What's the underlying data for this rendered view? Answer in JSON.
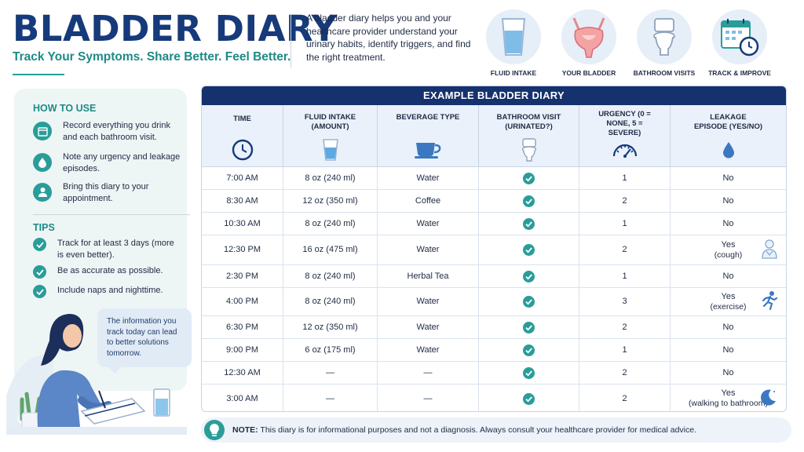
{
  "header": {
    "title": "BLADDER DIARY",
    "subtitle": "Track Your Symptoms. Share Better. Feel Better.",
    "intro": "A bladder diary helps you and your healthcare provider understand your urinary habits, identify triggers, and find the right treatment."
  },
  "top_icons": [
    {
      "label": "FLUID INTAKE",
      "icon": "water-glass-icon"
    },
    {
      "label": "YOUR BLADDER",
      "icon": "bladder-icon"
    },
    {
      "label": "BATHROOM VISITS",
      "icon": "toilet-icon"
    },
    {
      "label": "TRACK & IMPROVE",
      "icon": "calendar-clock-icon"
    }
  ],
  "sidebar": {
    "how_to_use_heading": "HOW TO USE",
    "how_to_use": [
      {
        "text": "Record everything you drink and each bathroom visit.",
        "icon": "calendar-icon"
      },
      {
        "text": "Note any urgency and leakage episodes.",
        "icon": "drop-icon"
      },
      {
        "text": "Bring this diary to your appointment.",
        "icon": "doctor-icon"
      }
    ],
    "tips_heading": "TIPS",
    "tips": [
      "Track for at least 3 days (more is even better).",
      "Be as accurate as possible.",
      "Include naps and nighttime."
    ],
    "bubble": "The information you track today can lead to better solutions tomorrow."
  },
  "table": {
    "title": "EXAMPLE BLADDER DIARY",
    "headers": [
      {
        "label": "TIME",
        "icon": "clock-icon"
      },
      {
        "label": "FLUID INTAKE (AMOUNT)",
        "icon": "glass-icon"
      },
      {
        "label": "BEVERAGE TYPE",
        "icon": "cup-icon"
      },
      {
        "label": "BATHROOM VISIT (URINATED?)",
        "icon": "toilet-icon"
      },
      {
        "label": "URGENCY (0 = NONE, 5 = SEVERE)",
        "icon": "gauge-icon"
      },
      {
        "label": "LEAKAGE EPISODE (YES/NO)",
        "icon": "drop-icon"
      }
    ],
    "rows": [
      {
        "time": "7:00 AM",
        "amount": "8 oz (240 ml)",
        "beverage": "Water",
        "visit": true,
        "urgency": "1",
        "leakage": "No",
        "note": "",
        "icon": ""
      },
      {
        "time": "8:30 AM",
        "amount": "12 oz (350 ml)",
        "beverage": "Coffee",
        "visit": true,
        "urgency": "2",
        "leakage": "No",
        "note": "",
        "icon": ""
      },
      {
        "time": "10:30 AM",
        "amount": "8 oz (240 ml)",
        "beverage": "Water",
        "visit": true,
        "urgency": "1",
        "leakage": "No",
        "note": "",
        "icon": ""
      },
      {
        "time": "12:30 PM",
        "amount": "16 oz (475 ml)",
        "beverage": "Water",
        "visit": true,
        "urgency": "2",
        "leakage": "Yes",
        "note": "(cough)",
        "icon": "cough-icon"
      },
      {
        "time": "2:30 PM",
        "amount": "8 oz (240 ml)",
        "beverage": "Herbal Tea",
        "visit": true,
        "urgency": "1",
        "leakage": "No",
        "note": "",
        "icon": ""
      },
      {
        "time": "4:00 PM",
        "amount": "8 oz (240 ml)",
        "beverage": "Water",
        "visit": true,
        "urgency": "3",
        "leakage": "Yes",
        "note": "(exercise)",
        "icon": "runner-icon"
      },
      {
        "time": "6:30 PM",
        "amount": "12 oz (350 ml)",
        "beverage": "Water",
        "visit": true,
        "urgency": "2",
        "leakage": "No",
        "note": "",
        "icon": ""
      },
      {
        "time": "9:00 PM",
        "amount": "6 oz (175 ml)",
        "beverage": "Water",
        "visit": true,
        "urgency": "1",
        "leakage": "No",
        "note": "",
        "icon": ""
      },
      {
        "time": "12:30 AM",
        "amount": "—",
        "beverage": "—",
        "visit": true,
        "urgency": "2",
        "leakage": "No",
        "note": "",
        "icon": ""
      },
      {
        "time": "3:00 AM",
        "amount": "—",
        "beverage": "—",
        "visit": true,
        "urgency": "2",
        "leakage": "Yes",
        "note": "(walking to bathroom)",
        "icon": "moon-icon"
      }
    ]
  },
  "note": {
    "label": "NOTE:",
    "text": "This diary is for informational purposes and not a diagnosis. Always consult your healthcare provider for medical advice."
  },
  "colors": {
    "navy": "#15326e",
    "title_blue": "#163a7a",
    "teal": "#2a9d99",
    "light_blue": "#eaf1fa",
    "sidebar_bg": "#eef5f5"
  }
}
